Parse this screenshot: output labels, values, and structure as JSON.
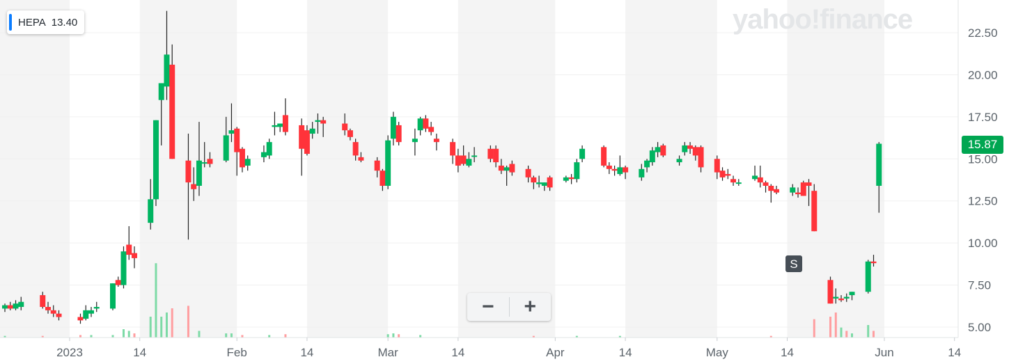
{
  "ticker": {
    "symbol": "HEPA",
    "price": "13.40",
    "color": "#0a7cff"
  },
  "logo_text": "yahoo!finance",
  "current_price": {
    "label": "15.87",
    "color": "#00a651"
  },
  "signal_marker": "S",
  "zoom": {
    "minus": "−",
    "plus": "+"
  },
  "colors": {
    "up": "#00b561",
    "down": "#ff333a",
    "band": "#f4f4f4",
    "grid": "#f0f0f0",
    "axis_text": "#5b636a"
  },
  "chart_data": {
    "type": "candlestick",
    "ylim": [
      4.3,
      24.2
    ],
    "y_ticks": [
      "5.00",
      "7.50",
      "10.00",
      "12.50",
      "15.00",
      "17.50",
      "20.00",
      "22.50"
    ],
    "x_ticks": [
      {
        "label": "2023",
        "date": "2023-01-01"
      },
      {
        "label": "14",
        "date": "2023-01-14"
      },
      {
        "label": "Feb",
        "date": "2023-02-01"
      },
      {
        "label": "14",
        "date": "2023-02-14"
      },
      {
        "label": "Mar",
        "date": "2023-03-01"
      },
      {
        "label": "14",
        "date": "2023-03-14"
      },
      {
        "label": "Apr",
        "date": "2023-04-01"
      },
      {
        "label": "14",
        "date": "2023-04-14"
      },
      {
        "label": "May",
        "date": "2023-05-01"
      },
      {
        "label": "14",
        "date": "2023-05-14"
      },
      {
        "label": "Jun",
        "date": "2023-06-01"
      },
      {
        "label": "14",
        "date": "2023-06-14"
      }
    ],
    "x_start": "2022-12-20",
    "x_end": "2023-06-15",
    "signal_date": "2023-05-12",
    "candles": [
      [
        "2022-12-20",
        6.1,
        6.4,
        5.9,
        6.3
      ],
      [
        "2022-12-21",
        6.3,
        6.5,
        6.0,
        6.1
      ],
      [
        "2022-12-22",
        6.1,
        6.6,
        6.0,
        6.4
      ],
      [
        "2022-12-23",
        6.2,
        6.8,
        6.0,
        6.5
      ],
      [
        "2022-12-27",
        6.9,
        7.1,
        6.1,
        6.2
      ],
      [
        "2022-12-28",
        6.2,
        6.5,
        5.8,
        6.0
      ],
      [
        "2022-12-29",
        6.0,
        6.3,
        5.6,
        5.8
      ],
      [
        "2022-12-30",
        5.8,
        6.0,
        5.4,
        5.6
      ],
      [
        "2023-01-03",
        5.6,
        5.8,
        5.2,
        5.4
      ],
      [
        "2023-01-04",
        5.5,
        6.3,
        5.4,
        6.0
      ],
      [
        "2023-01-05",
        5.8,
        6.2,
        5.6,
        6.0
      ],
      [
        "2023-01-06",
        6.1,
        6.5,
        5.9,
        6.2
      ],
      [
        "2023-01-09",
        6.1,
        7.6,
        6.0,
        7.6
      ],
      [
        "2023-01-10",
        7.8,
        8.0,
        7.4,
        7.5
      ],
      [
        "2023-01-11",
        7.5,
        9.8,
        7.3,
        9.5
      ],
      [
        "2023-01-12",
        9.9,
        11.0,
        9.0,
        9.3
      ],
      [
        "2023-01-13",
        9.4,
        9.8,
        8.5,
        9.1
      ],
      [
        "2023-01-16",
        11.2,
        13.8,
        10.8,
        12.6
      ],
      [
        "2023-01-17",
        12.6,
        17.3,
        12.2,
        17.3
      ],
      [
        "2023-01-18",
        18.5,
        19.5,
        15.8,
        19.5
      ],
      [
        "2023-01-19",
        19.3,
        23.8,
        18.5,
        21.2
      ],
      [
        "2023-01-20",
        20.6,
        21.8,
        15.0,
        15.0
      ],
      [
        "2023-01-23",
        14.9,
        16.5,
        10.2,
        13.6
      ],
      [
        "2023-01-24",
        13.5,
        14.5,
        12.5,
        13.2
      ],
      [
        "2023-01-25",
        13.4,
        17.2,
        12.8,
        14.9
      ],
      [
        "2023-01-26",
        14.8,
        16.0,
        14.5,
        14.8
      ],
      [
        "2023-01-27",
        15.0,
        15.4,
        14.5,
        14.7
      ],
      [
        "2023-01-30",
        14.9,
        17.5,
        14.8,
        16.4
      ],
      [
        "2023-01-31",
        16.5,
        18.3,
        16.0,
        16.7
      ],
      [
        "2023-02-01",
        16.8,
        16.9,
        14.0,
        15.4
      ],
      [
        "2023-02-02",
        15.6,
        15.7,
        14.2,
        14.5
      ],
      [
        "2023-02-03",
        14.6,
        15.2,
        14.3,
        15.0
      ],
      [
        "2023-02-06",
        15.1,
        15.8,
        14.8,
        15.4
      ],
      [
        "2023-02-07",
        15.2,
        16.2,
        15.0,
        16.0
      ],
      [
        "2023-02-08",
        16.9,
        17.8,
        16.4,
        17.0
      ],
      [
        "2023-02-09",
        16.9,
        17.1,
        16.6,
        17.1
      ],
      [
        "2023-02-10",
        17.6,
        18.6,
        16.4,
        16.6
      ],
      [
        "2023-02-13",
        17.0,
        17.4,
        14.0,
        15.6
      ],
      [
        "2023-02-14",
        16.7,
        17.0,
        15.2,
        15.3
      ],
      [
        "2023-02-15",
        16.5,
        17.2,
        16.2,
        16.8
      ],
      [
        "2023-02-16",
        17.2,
        17.7,
        16.5,
        17.3
      ],
      [
        "2023-02-17",
        17.3,
        17.5,
        16.3,
        17.1
      ],
      [
        "2023-02-21",
        17.1,
        17.7,
        16.4,
        16.7
      ],
      [
        "2023-02-22",
        16.7,
        16.8,
        16.1,
        16.3
      ],
      [
        "2023-02-23",
        16.0,
        16.2,
        14.9,
        15.2
      ],
      [
        "2023-02-24",
        15.1,
        15.4,
        14.8,
        14.9
      ],
      [
        "2023-02-27",
        14.9,
        15.1,
        13.9,
        14.3
      ],
      [
        "2023-02-28",
        14.3,
        14.4,
        13.1,
        13.4
      ],
      [
        "2023-03-01",
        13.4,
        16.4,
        13.2,
        16.1
      ],
      [
        "2023-03-02",
        16.2,
        17.8,
        15.8,
        17.5
      ],
      [
        "2023-03-03",
        17.0,
        17.2,
        15.8,
        16.0
      ],
      [
        "2023-03-06",
        16.0,
        16.8,
        15.2,
        16.2
      ],
      [
        "2023-03-07",
        16.7,
        17.5,
        16.4,
        17.4
      ],
      [
        "2023-03-08",
        17.4,
        17.6,
        16.6,
        16.8
      ],
      [
        "2023-03-09",
        16.9,
        17.2,
        16.4,
        16.6
      ],
      [
        "2023-03-10",
        16.2,
        16.5,
        15.5,
        16.0
      ],
      [
        "2023-03-13",
        16.0,
        16.2,
        14.7,
        15.2
      ],
      [
        "2023-03-14",
        15.2,
        15.6,
        14.2,
        14.6
      ],
      [
        "2023-03-15",
        15.2,
        15.8,
        14.6,
        14.7
      ],
      [
        "2023-03-16",
        14.6,
        15.4,
        14.5,
        15.0
      ],
      [
        "2023-03-17",
        15.2,
        15.7,
        14.8,
        15.2
      ],
      [
        "2023-03-20",
        15.6,
        15.8,
        14.8,
        15.0
      ],
      [
        "2023-03-21",
        15.6,
        15.8,
        14.5,
        14.8
      ],
      [
        "2023-03-22",
        14.6,
        15.0,
        14.1,
        14.3
      ],
      [
        "2023-03-23",
        14.3,
        14.6,
        13.4,
        14.5
      ],
      [
        "2023-03-24",
        14.7,
        14.9,
        14.0,
        14.2
      ],
      [
        "2023-03-27",
        14.4,
        14.6,
        13.6,
        13.9
      ],
      [
        "2023-03-28",
        13.9,
        14.0,
        13.2,
        13.6
      ],
      [
        "2023-03-29",
        13.5,
        14.0,
        13.3,
        13.6
      ],
      [
        "2023-03-30",
        13.4,
        13.6,
        13.1,
        13.6
      ],
      [
        "2023-03-31",
        13.9,
        14.0,
        13.1,
        13.3
      ],
      [
        "2023-04-03",
        13.7,
        14.0,
        13.6,
        13.9
      ],
      [
        "2023-04-04",
        13.9,
        14.1,
        13.5,
        13.8
      ],
      [
        "2023-04-05",
        13.8,
        15.0,
        13.6,
        14.8
      ],
      [
        "2023-04-06",
        15.0,
        15.8,
        14.8,
        15.6
      ],
      [
        "2023-04-10",
        15.7,
        15.8,
        14.5,
        14.6
      ],
      [
        "2023-04-11",
        14.6,
        14.8,
        14.1,
        14.4
      ],
      [
        "2023-04-12",
        14.4,
        14.6,
        14.0,
        14.3
      ],
      [
        "2023-04-13",
        14.1,
        15.2,
        14.0,
        14.5
      ],
      [
        "2023-04-14",
        14.5,
        14.6,
        13.8,
        14.2
      ],
      [
        "2023-04-17",
        13.9,
        14.7,
        13.7,
        14.4
      ],
      [
        "2023-04-18",
        14.5,
        15.0,
        14.2,
        14.9
      ],
      [
        "2023-04-19",
        14.8,
        15.7,
        14.6,
        15.5
      ],
      [
        "2023-04-20",
        15.4,
        16.0,
        15.1,
        15.7
      ],
      [
        "2023-04-21",
        15.8,
        15.9,
        15.1,
        15.2
      ],
      [
        "2023-04-24",
        14.8,
        15.2,
        14.6,
        15.0
      ],
      [
        "2023-04-25",
        15.4,
        16.0,
        15.2,
        15.8
      ],
      [
        "2023-04-26",
        15.8,
        16.0,
        15.3,
        15.6
      ],
      [
        "2023-04-27",
        15.7,
        15.8,
        14.9,
        15.2
      ],
      [
        "2023-04-28",
        15.7,
        15.8,
        14.2,
        14.5
      ],
      [
        "2023-05-01",
        15.0,
        15.2,
        13.8,
        14.2
      ],
      [
        "2023-05-02",
        14.3,
        14.5,
        13.7,
        13.9
      ],
      [
        "2023-05-03",
        14.1,
        14.4,
        13.8,
        14.0
      ],
      [
        "2023-05-04",
        13.8,
        14.0,
        13.4,
        13.6
      ],
      [
        "2023-05-05",
        13.6,
        13.8,
        13.4,
        13.6
      ],
      [
        "2023-05-08",
        13.8,
        14.6,
        13.7,
        14.0
      ],
      [
        "2023-05-09",
        13.9,
        14.6,
        13.3,
        13.6
      ],
      [
        "2023-05-10",
        13.6,
        13.7,
        13.0,
        13.4
      ],
      [
        "2023-05-11",
        13.4,
        13.5,
        12.4,
        13.1
      ],
      [
        "2023-05-12",
        13.2,
        13.4,
        12.9,
        13.0
      ],
      [
        "2023-05-15",
        13.0,
        13.5,
        12.8,
        13.3
      ],
      [
        "2023-05-16",
        13.0,
        13.3,
        12.7,
        12.9
      ],
      [
        "2023-05-17",
        13.6,
        13.7,
        12.8,
        12.8
      ],
      [
        "2023-05-18",
        13.6,
        13.8,
        12.2,
        13.4
      ],
      [
        "2023-05-19",
        13.1,
        13.5,
        10.7,
        10.7
      ],
      [
        "2023-05-22",
        7.8,
        8.0,
        6.4,
        6.4
      ],
      [
        "2023-05-23",
        6.7,
        7.3,
        6.4,
        6.8
      ],
      [
        "2023-05-24",
        6.7,
        6.9,
        6.5,
        6.6
      ],
      [
        "2023-05-25",
        6.7,
        7.0,
        6.5,
        6.8
      ],
      [
        "2023-05-26",
        6.9,
        7.1,
        6.6,
        7.1
      ],
      [
        "2023-05-29",
        7.1,
        9.0,
        7.0,
        8.9
      ],
      [
        "2023-05-30",
        8.9,
        9.3,
        8.6,
        8.8
      ],
      [
        "2023-05-31",
        13.4,
        16.0,
        11.8,
        15.9
      ]
    ],
    "volumes": [
      [
        "2022-12-20",
        0.2,
        "up"
      ],
      [
        "2022-12-27",
        0.2,
        "down"
      ],
      [
        "2023-01-03",
        0.3,
        "down"
      ],
      [
        "2023-01-05",
        0.3,
        "up"
      ],
      [
        "2023-01-09",
        0.3,
        "up"
      ],
      [
        "2023-01-11",
        1.0,
        "up"
      ],
      [
        "2023-01-12",
        0.8,
        "up"
      ],
      [
        "2023-01-13",
        0.5,
        "down"
      ],
      [
        "2023-01-16",
        2.5,
        "up"
      ],
      [
        "2023-01-17",
        8.9,
        "up"
      ],
      [
        "2023-01-18",
        2.5,
        "up"
      ],
      [
        "2023-01-19",
        3.0,
        "up"
      ],
      [
        "2023-01-20",
        3.5,
        "down"
      ],
      [
        "2023-01-23",
        3.8,
        "down"
      ],
      [
        "2023-01-25",
        0.8,
        "up"
      ],
      [
        "2023-01-30",
        0.5,
        "up"
      ],
      [
        "2023-01-31",
        0.5,
        "up"
      ],
      [
        "2023-02-02",
        0.3,
        "down"
      ],
      [
        "2023-02-07",
        0.3,
        "up"
      ],
      [
        "2023-02-10",
        0.4,
        "down"
      ],
      [
        "2023-03-01",
        0.4,
        "up"
      ],
      [
        "2023-03-02",
        0.5,
        "up"
      ],
      [
        "2023-03-03",
        0.4,
        "down"
      ],
      [
        "2023-03-07",
        0.3,
        "up"
      ],
      [
        "2023-03-28",
        0.2,
        "down"
      ],
      [
        "2023-04-05",
        0.2,
        "up"
      ],
      [
        "2023-04-13",
        0.2,
        "up"
      ],
      [
        "2023-05-11",
        0.2,
        "down"
      ],
      [
        "2023-05-19",
        2.2,
        "down"
      ],
      [
        "2023-05-22",
        2.5,
        "down"
      ],
      [
        "2023-05-23",
        3.0,
        "down"
      ],
      [
        "2023-05-24",
        1.2,
        "up"
      ],
      [
        "2023-05-25",
        0.8,
        "down"
      ],
      [
        "2023-05-26",
        0.5,
        "up"
      ],
      [
        "2023-05-29",
        1.5,
        "up"
      ],
      [
        "2023-05-30",
        0.8,
        "down"
      ]
    ]
  }
}
